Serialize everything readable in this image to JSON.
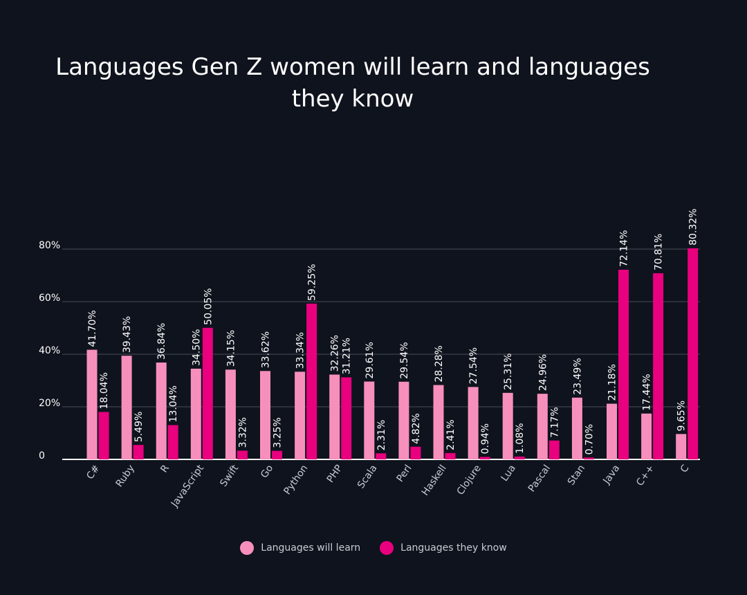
{
  "chart_data": {
    "type": "bar",
    "title": "Languages Gen Z women will learn and languages they know",
    "xlabel": "",
    "ylabel": "",
    "ylim": [
      0,
      80
    ],
    "y_ticks": [
      "0",
      "20%",
      "40%",
      "60%",
      "80%"
    ],
    "grid": true,
    "legend_position": "bottom",
    "categories": [
      "C#",
      "Ruby",
      "R",
      "JavaScript",
      "Swift",
      "Go",
      "Python",
      "PHP",
      "Scala",
      "Perl",
      "Haskell",
      "Clojure",
      "Lua",
      "Pascal",
      "Stan",
      "Java",
      "C++",
      "C"
    ],
    "series": [
      {
        "name": "Languages will learn",
        "color": "#f78fbc",
        "values": [
          41.7,
          39.43,
          36.84,
          34.5,
          34.15,
          33.62,
          33.34,
          32.26,
          29.61,
          29.54,
          28.28,
          27.54,
          25.31,
          24.96,
          23.49,
          21.18,
          17.44,
          9.65
        ],
        "labels": [
          "41.70%",
          "39.43%",
          "36.84%",
          "34.50%",
          "34.15%",
          "33.62%",
          "33.34%",
          "32.26%",
          "29.61%",
          "29.54%",
          "28.28%",
          "27.54%",
          "25.31%",
          "24.96%",
          "23.49%",
          "21.18%",
          "17.44%",
          "9.65%"
        ]
      },
      {
        "name": "Languages they know",
        "color": "#e8007e",
        "values": [
          18.04,
          5.49,
          13.04,
          50.05,
          3.32,
          3.25,
          59.25,
          31.21,
          2.31,
          4.82,
          2.41,
          0.94,
          1.08,
          7.17,
          0.7,
          72.14,
          70.81,
          80.32
        ],
        "labels": [
          "18.04%",
          "5.49%",
          "13.04%",
          "50.05%",
          "3.32%",
          "3.25%",
          "59.25%",
          "31.21%",
          "2.31%",
          "4.82%",
          "2.41%",
          "0.94%",
          "1.08%",
          "7.17%",
          "0.70%",
          "72.14%",
          "70.81%",
          "80.32%"
        ]
      }
    ]
  },
  "colors": {
    "background": "#0f131d",
    "gridline": "#4a4e58",
    "baseline": "#ffffff",
    "text": "#ffffff",
    "muted_text": "#c9ccd4"
  }
}
